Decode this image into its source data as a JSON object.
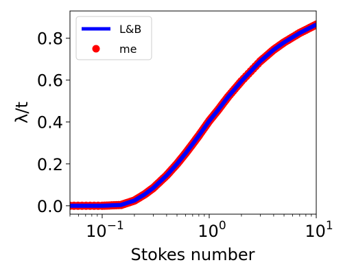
{
  "chart_data": {
    "type": "scatter",
    "title": "",
    "xlabel": "Stokes number",
    "ylabel": "λ/t",
    "xscale": "log",
    "xlim": [
      0.05,
      10
    ],
    "ylim": [
      -0.04,
      0.93
    ],
    "x_ticks": [
      {
        "value": 0.1,
        "base": "10",
        "exp": "−1"
      },
      {
        "value": 1,
        "base": "10",
        "exp": "0"
      },
      {
        "value": 10,
        "base": "10",
        "exp": "1"
      }
    ],
    "y_ticks": [
      {
        "value": 0.0,
        "label": "0.0"
      },
      {
        "value": 0.2,
        "label": "0.2"
      },
      {
        "value": 0.4,
        "label": "0.4"
      },
      {
        "value": 0.6,
        "label": "0.6"
      },
      {
        "value": 0.8,
        "label": "0.8"
      }
    ],
    "grid": false,
    "legend_position": "top-left",
    "series": [
      {
        "name": "L&B",
        "kind": "line",
        "color": "#0000ff",
        "x": [
          0.05,
          0.1,
          0.15,
          0.2,
          0.25,
          0.3,
          0.4,
          0.5,
          0.6,
          0.7,
          0.8,
          1.0,
          1.2,
          1.5,
          2.0,
          3.0,
          4.0,
          5.0,
          7.0,
          10.0
        ],
        "y": [
          0.0,
          0.0,
          0.004,
          0.025,
          0.055,
          0.085,
          0.145,
          0.2,
          0.25,
          0.295,
          0.335,
          0.405,
          0.455,
          0.52,
          0.595,
          0.69,
          0.745,
          0.78,
          0.825,
          0.865
        ]
      },
      {
        "name": "me",
        "kind": "scatter",
        "color": "#ff0000",
        "x": [
          0.05,
          0.1,
          0.15,
          0.2,
          0.25,
          0.3,
          0.4,
          0.5,
          0.6,
          0.7,
          0.8,
          1.0,
          1.2,
          1.5,
          2.0,
          3.0,
          4.0,
          5.0,
          7.0,
          10.0
        ],
        "y": [
          0.0,
          0.0,
          0.004,
          0.025,
          0.055,
          0.085,
          0.145,
          0.2,
          0.25,
          0.295,
          0.335,
          0.405,
          0.455,
          0.52,
          0.595,
          0.69,
          0.745,
          0.78,
          0.825,
          0.865
        ]
      }
    ]
  }
}
